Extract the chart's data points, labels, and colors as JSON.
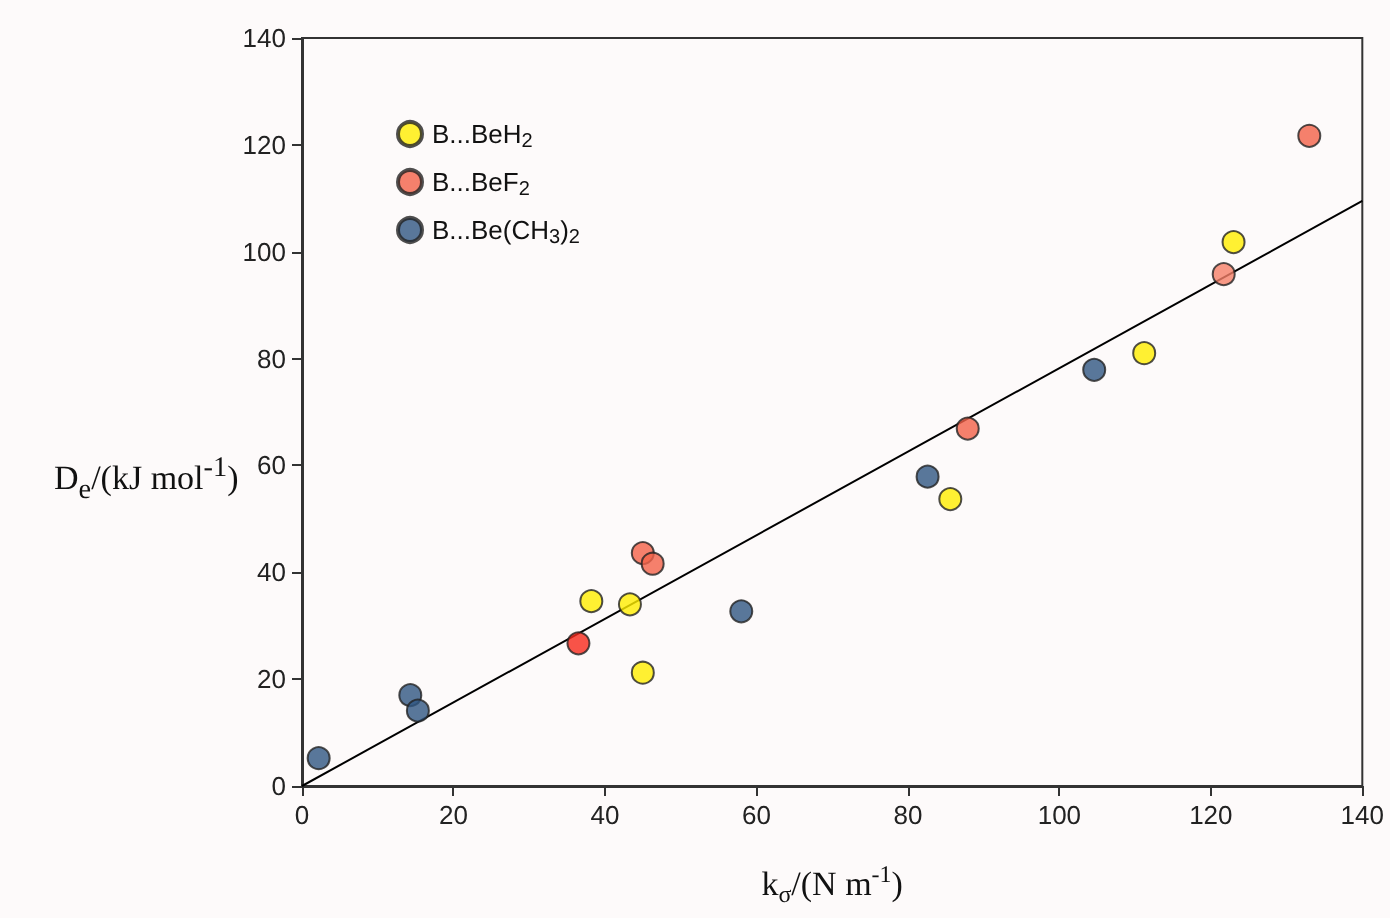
{
  "chart_data": {
    "type": "scatter",
    "xlabel": "k$_{σ}$/(N m$^{-1}$)",
    "ylabel": "D$_{e}$/(kJ mol$^{-1}$)",
    "xlim": [
      0,
      140
    ],
    "xticks": [
      0,
      20,
      40,
      60,
      80,
      100,
      120,
      140
    ],
    "ylim": [
      0,
      140
    ],
    "yticks": [
      0,
      20,
      40,
      60,
      80,
      100,
      120,
      140
    ],
    "grid": false,
    "legend": "top left",
    "marker": "circle",
    "series": [
      {
        "name": "B...BeH$_{2}$",
        "color": "#ffed00",
        "x": [
          38.2,
          43.3,
          45,
          85.6,
          111.2,
          123
        ],
        "values": [
          34.6,
          34,
          21.2,
          53.7,
          81,
          101.8
        ]
      },
      {
        "name": "B...BeF$_{2}$",
        "color": "#f26148",
        "colors": [
          "#f6291b",
          "#f26148",
          "#f26148",
          "#f26148",
          "#f58068",
          "#f26148"
        ],
        "x": [
          36.5,
          45,
          46.3,
          87.9,
          121.7,
          133
        ],
        "values": [
          26.7,
          43.6,
          41.6,
          66.9,
          95.8,
          121.7
        ]
      },
      {
        "name": "B...Be(CH$_{3}$)$_{2}$",
        "color": "#2f5682",
        "x": [
          2.2,
          14.3,
          15.3,
          58,
          82.6,
          104.6
        ],
        "values": [
          5.2,
          17,
          14.1,
          32.7,
          57.9,
          77.9
        ]
      },
      {
        "type": "line",
        "color": "#000000",
        "line_style": "solid",
        "marker": "none",
        "x": [
          0,
          140
        ],
        "values": [
          0,
          109.5
        ]
      }
    ]
  }
}
